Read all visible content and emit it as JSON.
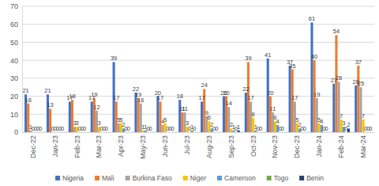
{
  "chart_data": {
    "type": "bar",
    "categories": [
      "Dec-22",
      "Jan-23",
      "Feb-23",
      "Mar-23",
      "Apr-23",
      "May-23",
      "Jun-23",
      "Jul-23",
      "Aug-23",
      "Sep-23",
      "Oct-23",
      "Nov-23",
      "Dec-23",
      "Jan-24",
      "Feb-24",
      "Mar-24"
    ],
    "series": [
      {
        "name": "Nigeria",
        "color": "#4472c4",
        "values": [
          21,
          21,
          17,
          17,
          39,
          22,
          20,
          18,
          17,
          20,
          22,
          41,
          37,
          61,
          27,
          26
        ]
      },
      {
        "name": "Mali",
        "color": "#ed7d31",
        "values": [
          16,
          13,
          18,
          19,
          17,
          19,
          17,
          11,
          24,
          20,
          39,
          20,
          35,
          40,
          54,
          37
        ]
      },
      {
        "name": "Burkina Faso",
        "color": "#a5a5a5",
        "values": [
          1,
          0,
          3,
          12,
          5,
          16,
          4,
          11,
          9,
          14,
          17,
          11,
          17,
          19,
          28,
          25
        ]
      },
      {
        "name": "Niger",
        "color": "#ffc000",
        "values": [
          0,
          0,
          3,
          3,
          5,
          1,
          5,
          3,
          6,
          2,
          8,
          6,
          5,
          5,
          7,
          7
        ]
      },
      {
        "name": "Cameroon",
        "color": "#5b9bd5",
        "values": [
          0,
          0,
          0,
          0,
          2,
          1,
          0,
          0,
          2,
          1,
          1,
          4,
          2,
          4,
          3,
          0
        ]
      },
      {
        "name": "Togo",
        "color": "#70ad47",
        "values": [
          0,
          0,
          0,
          0,
          0,
          0,
          0,
          1,
          0,
          0,
          0,
          0,
          0,
          0,
          0,
          0
        ]
      },
      {
        "name": "Benin",
        "color": "#264478",
        "values": [
          0,
          0,
          0,
          0,
          0,
          0,
          0,
          0,
          0,
          1,
          0,
          0,
          0,
          0,
          2,
          0
        ]
      }
    ],
    "ylim": [
      0,
      70
    ],
    "yticks": [
      0,
      10,
      20,
      30,
      40,
      50,
      60,
      70
    ],
    "grid": true,
    "data_labels": true,
    "legend": "bottom"
  }
}
